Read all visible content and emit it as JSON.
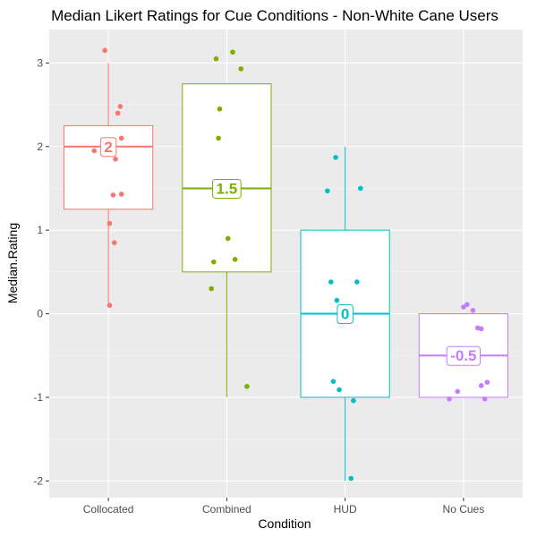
{
  "chart_data": {
    "type": "boxplot",
    "title": "Median Likert Ratings for Cue Conditions - Non-White Cane Users",
    "xlabel": "Condition",
    "ylabel": "Median.Rating",
    "ylim": [
      -2.2,
      3.4
    ],
    "yticks": [
      "-2",
      "-1",
      "0",
      "1",
      "2",
      "3"
    ],
    "ytick_values": [
      -2,
      -1,
      0,
      1,
      2,
      3
    ],
    "grid": true,
    "legend": "none",
    "categories": [
      "Collocated",
      "Combined",
      "HUD",
      "No Cues"
    ],
    "series": [
      {
        "category": "Collocated",
        "color": "#F8766D",
        "whisker_low": 0.1,
        "q1": 1.25,
        "median": 2,
        "q3": 2.25,
        "whisker_high": 3,
        "median_label": "2",
        "points": [
          {
            "x": -0.03,
            "y": 3.15
          },
          {
            "x": 0.1,
            "y": 2.48
          },
          {
            "x": 0.08,
            "y": 2.4
          },
          {
            "x": 0.11,
            "y": 2.1
          },
          {
            "x": -0.12,
            "y": 1.95
          },
          {
            "x": 0.06,
            "y": 1.85
          },
          {
            "x": 0.04,
            "y": 1.42
          },
          {
            "x": 0.11,
            "y": 1.43
          },
          {
            "x": 0.01,
            "y": 1.08
          },
          {
            "x": 0.05,
            "y": 0.85
          },
          {
            "x": 0.01,
            "y": 0.1
          }
        ]
      },
      {
        "category": "Combined",
        "color": "#7CAE00",
        "whisker_low": -1,
        "q1": 0.5,
        "median": 1.5,
        "q3": 2.75,
        "whisker_high": 2.75,
        "median_label": "1.5",
        "points": [
          {
            "x": 0.05,
            "y": 3.13
          },
          {
            "x": -0.09,
            "y": 3.05
          },
          {
            "x": 0.12,
            "y": 2.93
          },
          {
            "x": -0.06,
            "y": 2.45
          },
          {
            "x": -0.07,
            "y": 2.1
          },
          {
            "x": 0.01,
            "y": 0.9
          },
          {
            "x": 0.07,
            "y": 0.65
          },
          {
            "x": -0.11,
            "y": 0.62
          },
          {
            "x": -0.13,
            "y": 0.3
          },
          {
            "x": 0.17,
            "y": -0.87
          }
        ]
      },
      {
        "category": "HUD",
        "color": "#00BFC4",
        "whisker_low": -2,
        "q1": -1,
        "median": 0,
        "q3": 1,
        "whisker_high": 2,
        "median_label": "0",
        "points": [
          {
            "x": -0.08,
            "y": 1.87
          },
          {
            "x": 0.13,
            "y": 1.5
          },
          {
            "x": -0.15,
            "y": 1.47
          },
          {
            "x": -0.12,
            "y": 0.38
          },
          {
            "x": 0.1,
            "y": 0.38
          },
          {
            "x": -0.07,
            "y": 0.16
          },
          {
            "x": -0.1,
            "y": -0.81
          },
          {
            "x": -0.05,
            "y": -0.91
          },
          {
            "x": 0.07,
            "y": -1.04
          },
          {
            "x": 0.05,
            "y": -1.97
          }
        ]
      },
      {
        "category": "No Cues",
        "color": "#C77CFF",
        "whisker_low": -1,
        "q1": -1,
        "median": -0.5,
        "q3": 0,
        "whisker_high": 0,
        "median_label": "-0.5",
        "points": [
          {
            "x": 0.03,
            "y": 0.11
          },
          {
            "x": 0.0,
            "y": 0.08
          },
          {
            "x": 0.08,
            "y": 0.04
          },
          {
            "x": 0.12,
            "y": -0.17
          },
          {
            "x": 0.15,
            "y": -0.18
          },
          {
            "x": 0.2,
            "y": -0.82
          },
          {
            "x": 0.15,
            "y": -0.86
          },
          {
            "x": -0.05,
            "y": -0.93
          },
          {
            "x": -0.12,
            "y": -1.02
          },
          {
            "x": 0.18,
            "y": -1.02
          }
        ]
      }
    ]
  }
}
